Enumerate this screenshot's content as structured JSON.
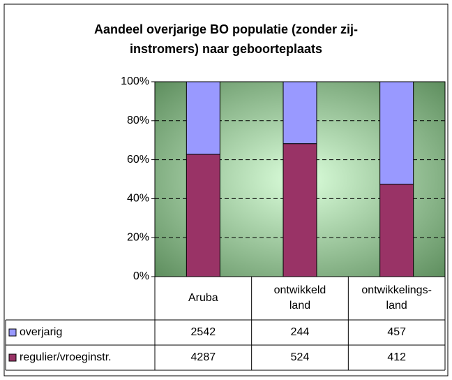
{
  "chart_data": {
    "type": "bar",
    "stacking": "percent",
    "title": "Aandeel overjarige BO populatie (zonder zij-instromers) naar geboorteplaats",
    "categories": [
      "Aruba",
      "ontwikkeld land",
      "ontwikkelings-land"
    ],
    "series": [
      {
        "name": "overjarig",
        "color": "#9999ff",
        "values": [
          2542,
          244,
          457
        ]
      },
      {
        "name": "regulier/vroeginstr.",
        "color": "#993366",
        "values": [
          4287,
          524,
          412
        ]
      }
    ],
    "ylim": [
      0,
      100
    ],
    "yticks": [
      {
        "value": 0,
        "label": "0%"
      },
      {
        "value": 20,
        "label": "20%"
      },
      {
        "value": 40,
        "label": "40%"
      },
      {
        "value": 60,
        "label": "60%"
      },
      {
        "value": 80,
        "label": "80%"
      },
      {
        "value": 100,
        "label": "100%"
      }
    ],
    "grid": true
  }
}
